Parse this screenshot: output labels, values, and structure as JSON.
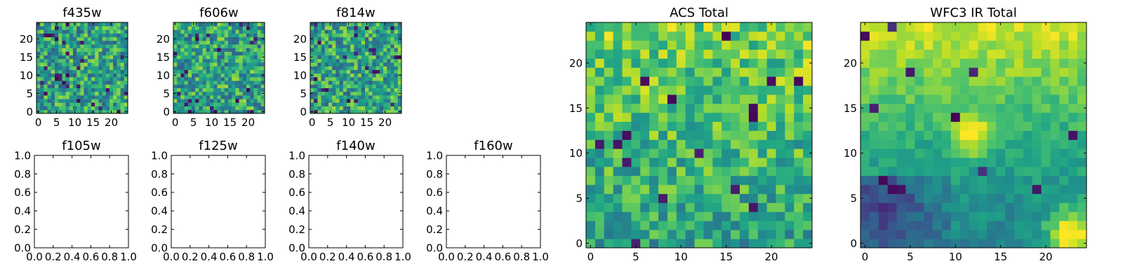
{
  "chart_data": [
    {
      "type": "heatmap",
      "title": "f435w",
      "grid_size": 25,
      "seed": 11,
      "kind": "noisy",
      "xticks": [
        "0",
        "5",
        "10",
        "15",
        "20"
      ],
      "yticks": [
        "0",
        "5",
        "10",
        "15",
        "20"
      ],
      "xlim": [
        -0.5,
        24.5
      ],
      "ylim": [
        -0.5,
        24.5
      ],
      "colormap": "viridis"
    },
    {
      "type": "heatmap",
      "title": "f606w",
      "grid_size": 25,
      "seed": 22,
      "kind": "noisy",
      "xticks": [
        "0",
        "5",
        "10",
        "15",
        "20"
      ],
      "yticks": [
        "0",
        "5",
        "10",
        "15",
        "20"
      ],
      "xlim": [
        -0.5,
        24.5
      ],
      "ylim": [
        -0.5,
        24.5
      ],
      "colormap": "viridis"
    },
    {
      "type": "heatmap",
      "title": "f814w",
      "grid_size": 25,
      "seed": 33,
      "kind": "noisy",
      "xticks": [
        "0",
        "5",
        "10",
        "15",
        "20"
      ],
      "yticks": [
        "0",
        "5",
        "10",
        "15",
        "20"
      ],
      "xlim": [
        -0.5,
        24.5
      ],
      "ylim": [
        -0.5,
        24.5
      ],
      "colormap": "viridis"
    },
    {
      "type": "empty",
      "title": "f105w",
      "xlim": [
        0,
        1
      ],
      "ylim": [
        0,
        1
      ],
      "xticks": [
        "0.0",
        "0.2",
        "0.4",
        "0.6",
        "0.8",
        "1.0"
      ],
      "yticks": [
        "0.0",
        "0.2",
        "0.4",
        "0.6",
        "0.8",
        "1.0"
      ]
    },
    {
      "type": "empty",
      "title": "f125w",
      "xlim": [
        0,
        1
      ],
      "ylim": [
        0,
        1
      ],
      "xticks": [
        "0.0",
        "0.2",
        "0.4",
        "0.6",
        "0.8",
        "1.0"
      ],
      "yticks": [
        "0.0",
        "0.2",
        "0.4",
        "0.6",
        "0.8",
        "1.0"
      ]
    },
    {
      "type": "empty",
      "title": "f140w",
      "xlim": [
        0,
        1
      ],
      "ylim": [
        0,
        1
      ],
      "xticks": [
        "0.0",
        "0.2",
        "0.4",
        "0.6",
        "0.8",
        "1.0"
      ],
      "yticks": [
        "0.0",
        "0.2",
        "0.4",
        "0.6",
        "0.8",
        "1.0"
      ]
    },
    {
      "type": "empty",
      "title": "f160w",
      "xlim": [
        0,
        1
      ],
      "ylim": [
        0,
        1
      ],
      "xticks": [
        "0.0",
        "0.2",
        "0.4",
        "0.6",
        "0.8",
        "1.0"
      ],
      "yticks": [
        "0.0",
        "0.2",
        "0.4",
        "0.6",
        "0.8",
        "1.0"
      ]
    },
    {
      "type": "heatmap",
      "title": "ACS Total",
      "grid_size": 25,
      "seed": 44,
      "kind": "acs",
      "xticks": [
        "0",
        "5",
        "10",
        "15",
        "20"
      ],
      "yticks": [
        "0",
        "5",
        "10",
        "15",
        "20"
      ],
      "xlim": [
        -0.5,
        24.5
      ],
      "ylim": [
        -0.5,
        24.5
      ],
      "colormap": "viridis"
    },
    {
      "type": "heatmap",
      "title": "WFC3 IR Total",
      "grid_size": 25,
      "seed": 55,
      "kind": "ir",
      "xticks": [
        "0",
        "5",
        "10",
        "15",
        "20"
      ],
      "yticks": [
        "0",
        "5",
        "10",
        "15",
        "20"
      ],
      "xlim": [
        -0.5,
        24.5
      ],
      "ylim": [
        -0.5,
        24.5
      ],
      "colormap": "viridis"
    }
  ]
}
